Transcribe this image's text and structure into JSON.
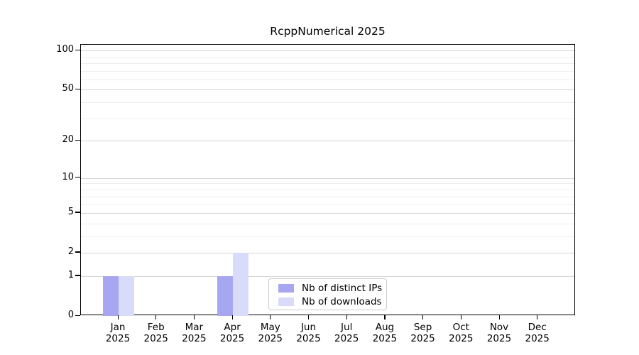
{
  "title": "RcppNumerical 2025",
  "chart_data": {
    "type": "bar",
    "title": "RcppNumerical 2025",
    "categories": [
      "Jan 2025",
      "Feb 2025",
      "Mar 2025",
      "Apr 2025",
      "May 2025",
      "Jun 2025",
      "Jul 2025",
      "Aug 2025",
      "Sep 2025",
      "Oct 2025",
      "Nov 2025",
      "Dec 2025"
    ],
    "months": [
      "Jan",
      "Feb",
      "Mar",
      "Apr",
      "May",
      "Jun",
      "Jul",
      "Aug",
      "Sep",
      "Oct",
      "Nov",
      "Dec"
    ],
    "year_label": "2025",
    "series": [
      {
        "name": "Nb of distinct IPs",
        "color": "#a6a6f1",
        "values": [
          1,
          0,
          0,
          1,
          0,
          0,
          0,
          0,
          0,
          0,
          0,
          0
        ]
      },
      {
        "name": "Nb of downloads",
        "color": "#d9dbfa",
        "values": [
          1,
          0,
          0,
          2,
          0,
          0,
          0,
          0,
          0,
          0,
          0,
          0
        ]
      }
    ],
    "yscale": "log1p",
    "ylabel": "",
    "xlabel": "",
    "ylim": [
      0,
      110
    ],
    "y_ticks": [
      0,
      1,
      2,
      5,
      10,
      20,
      50,
      100
    ],
    "y_minor_gridlines": [
      3,
      4,
      6,
      7,
      8,
      9,
      30,
      40,
      60,
      70,
      80,
      90
    ],
    "grid": true,
    "legend_position": "bottom-center"
  },
  "colors": {
    "background": "#ffffff",
    "axis": "#000000",
    "major_grid": "#d4d4d4",
    "minor_grid": "#ededed",
    "legend_border": "#cccccc"
  }
}
